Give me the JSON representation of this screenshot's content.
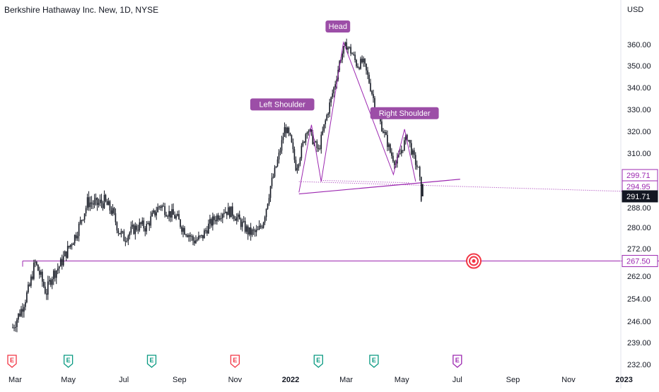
{
  "header": {
    "title": "Berkshire Hathaway Inc. New, 1D, NYSE"
  },
  "chart_data": {
    "type": "candlestick",
    "currency": "USD",
    "y_ticks": [
      232.0,
      239.0,
      246.0,
      254.0,
      262.0,
      272.0,
      280.0,
      288.0,
      310.0,
      320.0,
      330.0,
      340.0,
      350.0,
      360.0
    ],
    "x_ticks": [
      "Mar",
      "May",
      "Jul",
      "Sep",
      "Nov",
      "2022",
      "Mar",
      "May",
      "Jul",
      "Sep",
      "Nov",
      "2023"
    ],
    "price_labels": [
      {
        "text": "299.71",
        "value": 299.71,
        "style": "purple"
      },
      {
        "text": "294.95",
        "value": 294.95,
        "style": "purple"
      },
      {
        "text": "291.71",
        "value": 291.71,
        "style": "black"
      },
      {
        "text": "267.50",
        "value": 267.5,
        "style": "purple"
      }
    ],
    "annotations": [
      {
        "text": "Head",
        "date_index": 11.7,
        "value": 362
      },
      {
        "text": "Left Shoulder",
        "date_index": 9.7,
        "value": 326
      },
      {
        "text": "Right Shoulder",
        "date_index": 14.1,
        "value": 322
      }
    ],
    "support_level": 267.5,
    "last_close": 291.71,
    "events": [
      {
        "month_index": 0,
        "type": "earnings",
        "color": "#f23645"
      },
      {
        "month_index": 2,
        "type": "earnings",
        "color": "#089981"
      },
      {
        "month_index": 5,
        "type": "earnings",
        "color": "#089981"
      },
      {
        "month_index": 8,
        "type": "earnings",
        "color": "#f23645"
      },
      {
        "month_index": 11,
        "type": "earnings",
        "color": "#089981"
      },
      {
        "month_index": 13,
        "type": "earnings",
        "color": "#089981"
      },
      {
        "month_index": 16,
        "type": "earnings",
        "color": "#9c27b0"
      }
    ],
    "series_path": [
      [
        0.0,
        244
      ],
      [
        0.3,
        250
      ],
      [
        0.6,
        258
      ],
      [
        0.8,
        267
      ],
      [
        1.0,
        262
      ],
      [
        1.2,
        256
      ],
      [
        1.4,
        262
      ],
      [
        1.7,
        266
      ],
      [
        2.0,
        272
      ],
      [
        2.3,
        278
      ],
      [
        2.5,
        284
      ],
      [
        2.7,
        290
      ],
      [
        3.0,
        289
      ],
      [
        3.3,
        290
      ],
      [
        3.6,
        286
      ],
      [
        3.8,
        279
      ],
      [
        4.0,
        276
      ],
      [
        4.3,
        279
      ],
      [
        4.6,
        281
      ],
      [
        4.8,
        280
      ],
      [
        5.0,
        284
      ],
      [
        5.3,
        289
      ],
      [
        5.6,
        286
      ],
      [
        5.9,
        284
      ],
      [
        6.1,
        280
      ],
      [
        6.3,
        278
      ],
      [
        6.5,
        275
      ],
      [
        6.8,
        276
      ],
      [
        7.0,
        280
      ],
      [
        7.3,
        284
      ],
      [
        7.6,
        287
      ],
      [
        7.9,
        286
      ],
      [
        8.2,
        282
      ],
      [
        8.5,
        278
      ],
      [
        8.8,
        278
      ],
      [
        9.0,
        282
      ],
      [
        9.2,
        292
      ],
      [
        9.4,
        300
      ],
      [
        9.6,
        310
      ],
      [
        9.8,
        322
      ],
      [
        10.0,
        316
      ],
      [
        10.2,
        303
      ],
      [
        10.4,
        312
      ],
      [
        10.6,
        322
      ],
      [
        10.8,
        316
      ],
      [
        11.0,
        311
      ],
      [
        11.2,
        322
      ],
      [
        11.4,
        332
      ],
      [
        11.6,
        342
      ],
      [
        11.8,
        354
      ],
      [
        12.0,
        360
      ],
      [
        12.2,
        356
      ],
      [
        12.4,
        350
      ],
      [
        12.6,
        352
      ],
      [
        12.8,
        344
      ],
      [
        13.0,
        334
      ],
      [
        13.2,
        325
      ],
      [
        13.4,
        318
      ],
      [
        13.6,
        310
      ],
      [
        13.8,
        305
      ],
      [
        14.0,
        312
      ],
      [
        14.2,
        318
      ],
      [
        14.4,
        309
      ],
      [
        14.6,
        302
      ],
      [
        14.7,
        292
      ]
    ]
  }
}
